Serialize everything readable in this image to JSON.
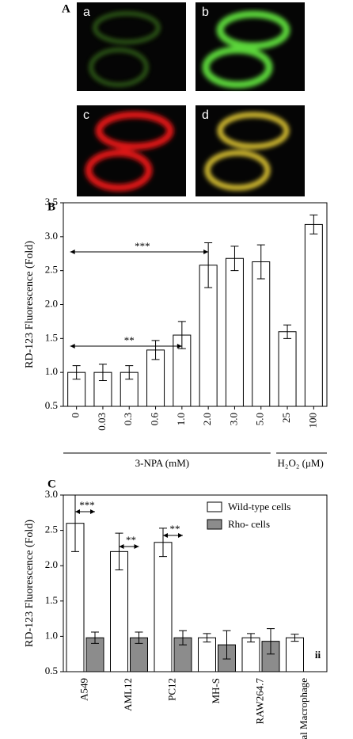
{
  "panel_labels": [
    "A",
    "B",
    "C"
  ],
  "image_labels": [
    "a",
    "b",
    "c",
    "d"
  ],
  "chart_data": [
    {
      "type": "bar",
      "ylabel": "RD-123 Fluorescence (Fold)",
      "categories": [
        "0",
        "0.03",
        "0.3",
        "0.6",
        "1.0",
        "2.0",
        "3.0",
        "5.0",
        "25",
        "100"
      ],
      "values": [
        1.0,
        1.0,
        1.0,
        1.33,
        1.55,
        2.58,
        2.68,
        2.63,
        1.6,
        3.18
      ],
      "errors": [
        0.1,
        0.12,
        0.1,
        0.14,
        0.2,
        0.33,
        0.18,
        0.25,
        0.1,
        0.14
      ],
      "color": "#ffffff",
      "group_labels": [
        "3-NPA (mM)",
        "H₂O₂ (μM)"
      ],
      "annotations": [
        "***",
        "**"
      ],
      "ylim": [
        0.5,
        3.5
      ],
      "yticks": [
        {
          "value": 0.5,
          "label": "0.5"
        },
        {
          "value": 1,
          "label": "1.0"
        },
        {
          "value": 1.5,
          "label": "1.5"
        },
        {
          "value": 2,
          "label": "2.0"
        },
        {
          "value": 2.5,
          "label": "2.5"
        },
        {
          "value": 3,
          "label": "3.0"
        },
        {
          "value": 3.5,
          "label": "3.5"
        }
      ]
    },
    {
      "type": "grouped-bar",
      "ylabel": "RD-123 Fluorescence (Fold)",
      "categories": [
        "A549",
        "AML12",
        "PC12",
        "MH-S",
        "RAW264.7",
        "Peritoneal Macrophage"
      ],
      "series": [
        {
          "name": "Wild-type cells",
          "color": "#ffffff",
          "values": [
            2.6,
            2.2,
            2.33,
            0.98,
            0.98,
            0.98
          ],
          "errors": [
            0.4,
            0.26,
            0.2,
            0.06,
            0.06,
            0.05
          ]
        },
        {
          "name": "Rho- cells",
          "color": "#8c8c8c",
          "values": [
            0.98,
            0.98,
            0.98,
            0.88,
            0.93,
            null
          ],
          "errors": [
            0.08,
            0.08,
            0.1,
            0.2,
            0.18,
            null
          ]
        }
      ],
      "annotations": [
        "***",
        "**",
        "**",
        "ii"
      ],
      "ylim": [
        0.5,
        3.0
      ],
      "yticks": [
        {
          "value": 0.5,
          "label": "0.5"
        },
        {
          "value": 1,
          "label": "1.0"
        },
        {
          "value": 1.5,
          "label": "1.5"
        },
        {
          "value": 2,
          "label": "2.0"
        },
        {
          "value": 2.5,
          "label": "2.5"
        },
        {
          "value": 3,
          "label": "3.0"
        }
      ]
    }
  ]
}
